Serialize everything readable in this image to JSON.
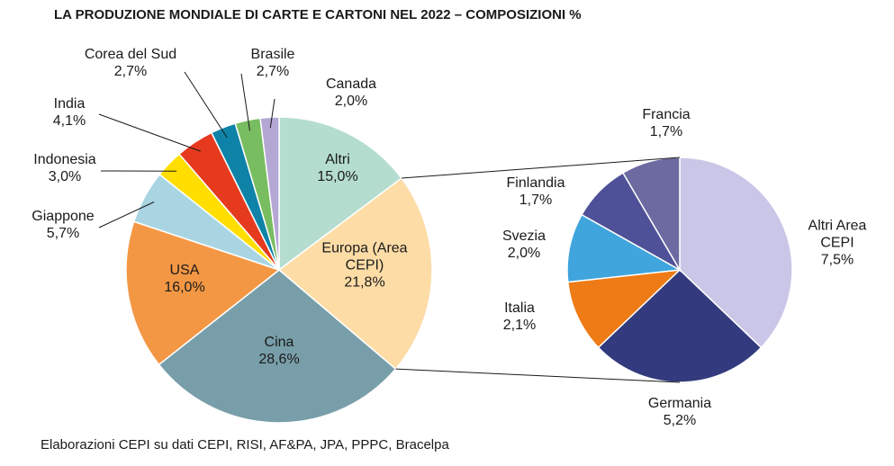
{
  "chart_data": [
    {
      "type": "pie",
      "title": "LA PRODUZIONE MONDIALE DI CARTE E CARTONI NEL 2022 – COMPOSIZIONI %",
      "source": "Elaborazioni CEPI su dati CEPI, RISI, AF&PA, JPA, PPPC, Bracelpa",
      "categories": [
        "Altri",
        "Europa (Area CEPI)",
        "Cina",
        "USA",
        "Giappone",
        "Indonesia",
        "India",
        "Corea del Sud",
        "Brasile",
        "Canada"
      ],
      "values": [
        15.0,
        21.8,
        28.6,
        16.0,
        5.7,
        3.0,
        4.1,
        2.7,
        2.7,
        2.0
      ],
      "value_labels": [
        "15,0%",
        "21,8%",
        "28,6%",
        "16,0%",
        "5,7%",
        "3,0%",
        "4,1%",
        "2,7%",
        "2,7%",
        "2,0%"
      ],
      "colors": [
        "#b4ddd0",
        "#fddca6",
        "#789ea9",
        "#f39745",
        "#a9d5e3",
        "#ffde00",
        "#e53a1e",
        "#0f83a7",
        "#78bd5f",
        "#b4a7d4"
      ]
    },
    {
      "type": "pie",
      "categories": [
        "Altri Area CEPI",
        "Germania",
        "Italia",
        "Svezia",
        "Finlandia",
        "Francia"
      ],
      "values": [
        7.5,
        5.2,
        2.1,
        2.0,
        1.7,
        1.7
      ],
      "value_labels": [
        "7,5%",
        "5,2%",
        "2,1%",
        "2,0%",
        "1,7%",
        "1,7%"
      ],
      "colors": [
        "#c9c6e7",
        "#333a7d",
        "#ee7b15",
        "#40a5dc",
        "#4e5197",
        "#6c6aa1"
      ]
    }
  ]
}
